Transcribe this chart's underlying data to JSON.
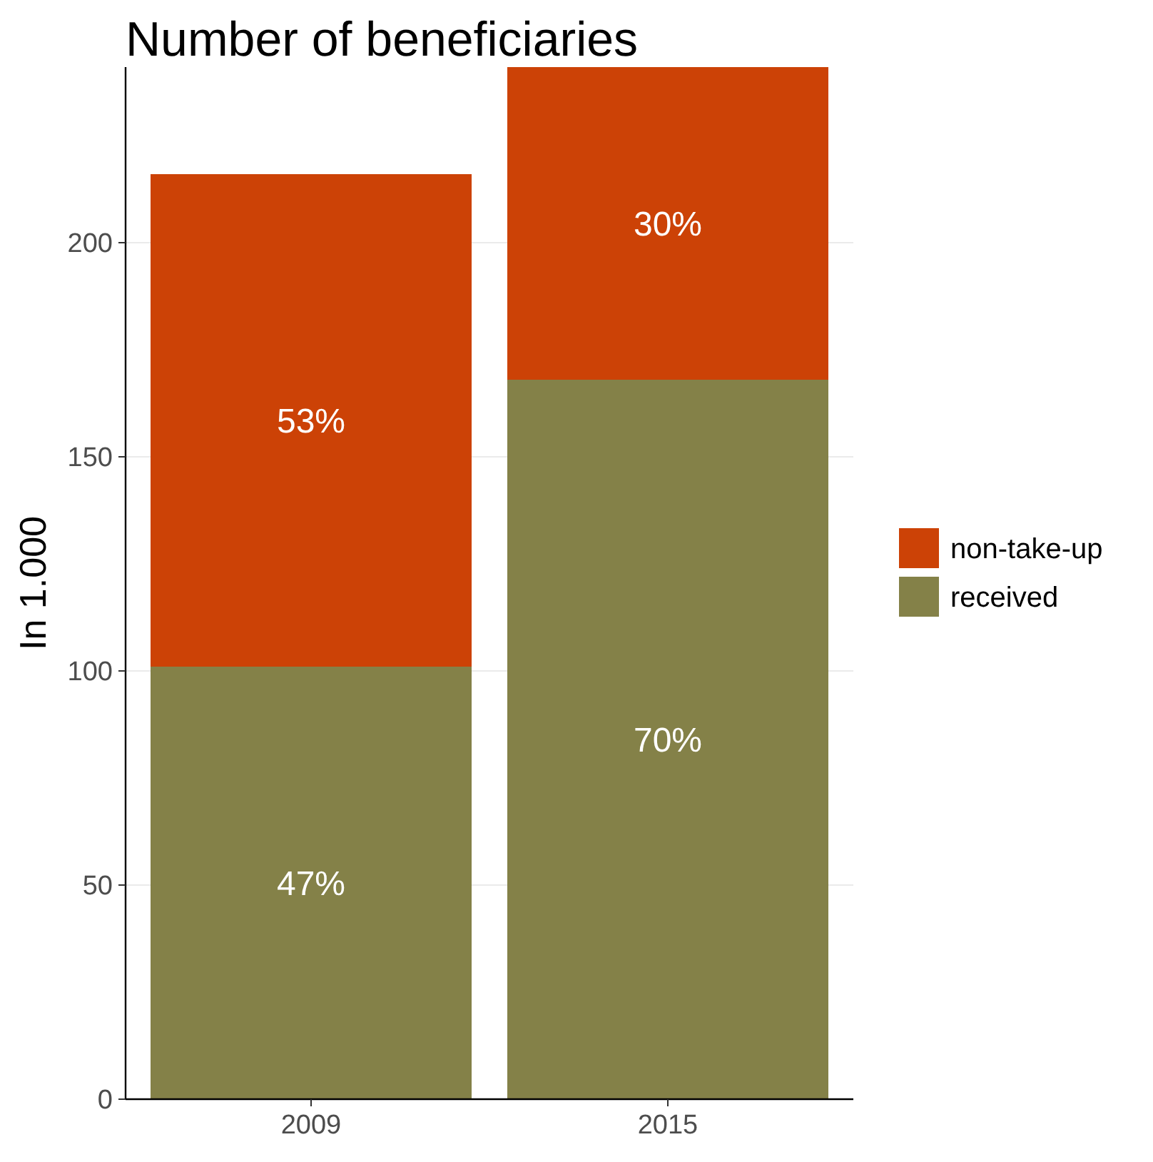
{
  "chart_data": {
    "type": "bar",
    "title": "Number of beneficiaries",
    "ylabel": "In 1.000",
    "categories": [
      "2009",
      "2015"
    ],
    "stacked": true,
    "series": [
      {
        "name": "received",
        "color": "#848148",
        "values": [
          101,
          168
        ]
      },
      {
        "name": "non-take-up",
        "color": "#cc4206",
        "values": [
          115,
          73
        ]
      }
    ],
    "annotations": [
      "47%",
      "70%",
      "53%",
      "30%"
    ],
    "ylim": [
      0,
      241
    ],
    "yticks": [
      0,
      50,
      100,
      150,
      200
    ],
    "grid": "y",
    "legend": "right"
  }
}
